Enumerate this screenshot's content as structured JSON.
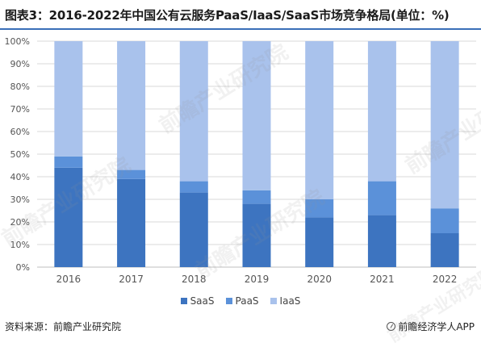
{
  "header": {
    "title": "图表3：2016-2022年中国公有云服务PaaS/IaaS/SaaS市场竞争格局(单位：%)"
  },
  "footer": {
    "source": "资料来源：前瞻产业研究院",
    "brand": "前瞻经济学人APP"
  },
  "watermark": {
    "text": "前瞻产业研究院"
  },
  "colors": {
    "SaaS": "#3d74c0",
    "PaaS": "#5b91d9",
    "IaaS": "#a9c2ec",
    "gridline": "#d9d9d9",
    "rule": "#3a6fb8"
  },
  "chart_data": {
    "type": "bar",
    "stacked": true,
    "categories": [
      "2016",
      "2017",
      "2018",
      "2019",
      "2020",
      "2021",
      "2022"
    ],
    "series": [
      {
        "name": "SaaS",
        "values": [
          44,
          39,
          33,
          28,
          22,
          23,
          15
        ]
      },
      {
        "name": "PaaS",
        "values": [
          5,
          4,
          5,
          6,
          8,
          15,
          11
        ]
      },
      {
        "name": "IaaS",
        "values": [
          51,
          57,
          62,
          66,
          70,
          62,
          74
        ]
      }
    ],
    "yticks": [
      "0%",
      "10%",
      "20%",
      "30%",
      "40%",
      "50%",
      "60%",
      "70%",
      "80%",
      "90%",
      "100%"
    ],
    "ylim": [
      0,
      100
    ],
    "grid": true,
    "legend_position": "bottom"
  }
}
